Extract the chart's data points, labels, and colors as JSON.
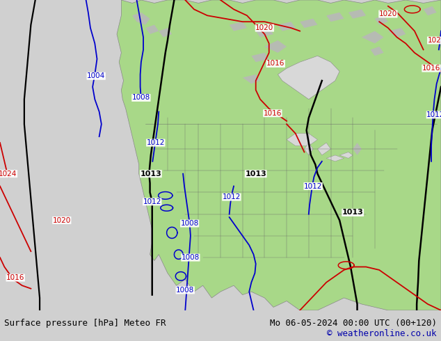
{
  "title_left": "Surface pressure [hPa] Meteo FR",
  "title_right": "Mo 06-05-2024 00:00 UTC (00+120)",
  "copyright": "© weatheronline.co.uk",
  "bg_color": "#d0d0d0",
  "land_color": "#a8d888",
  "ocean_color": "#d8d8d8",
  "mountain_color": "#b8b8b8",
  "fig_width": 6.34,
  "fig_height": 4.9,
  "dpi": 100,
  "bottom_bar_color": "#f0f0f0",
  "label_fontsize": 7.5,
  "footer_fontsize": 9,
  "copyright_fontsize": 9,
  "copyright_color": "#0000aa",
  "state_line_color": "#666666",
  "state_line_alpha": 0.8,
  "state_line_lw": 0.35,
  "coast_color": "#888888",
  "coast_lw": 0.5
}
